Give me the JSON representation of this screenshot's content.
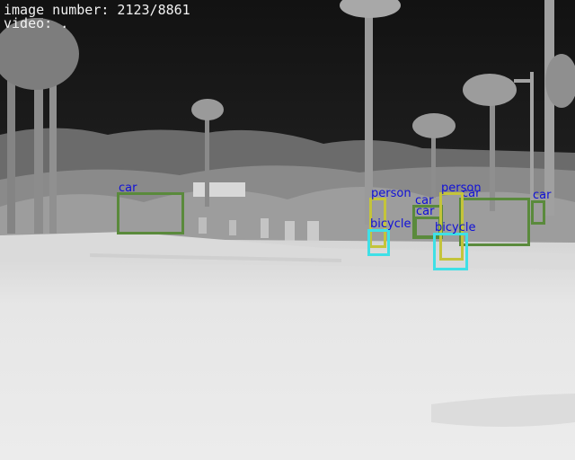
{
  "overlay": {
    "image_number_label": "image number: 2123/8861",
    "video_label": "video: ."
  },
  "colors": {
    "car": "#5a8a3c",
    "person": "#c4c43a",
    "bicycle": "#3fe0e6",
    "label_text": "#1010d8",
    "sky": "#1a1a1a",
    "ground": "#e6e6e6"
  },
  "detections": [
    {
      "class": "car",
      "label": "car"
    },
    {
      "class": "car",
      "label": "car"
    },
    {
      "class": "car",
      "label": "car"
    },
    {
      "class": "car",
      "label": "car"
    },
    {
      "class": "car",
      "label": "car"
    },
    {
      "class": "person",
      "label": "person"
    },
    {
      "class": "person",
      "label": "person"
    },
    {
      "class": "bicycle",
      "label": "bicycle"
    },
    {
      "class": "bicycle",
      "label": "bicycle"
    }
  ]
}
